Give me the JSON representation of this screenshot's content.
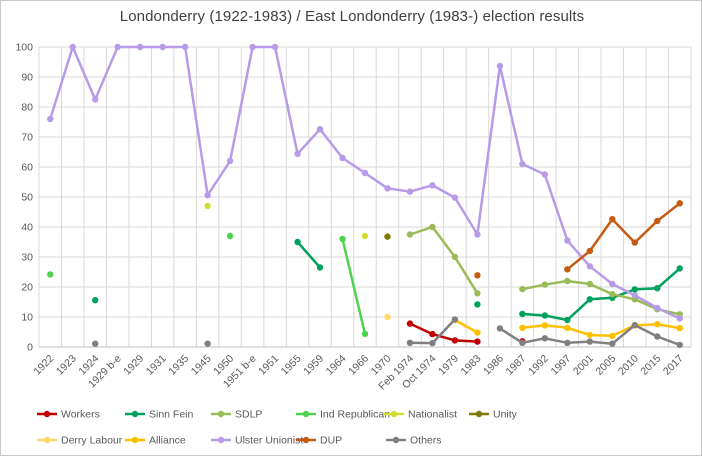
{
  "chart_data": {
    "type": "line",
    "title": "Londonderry (1922-1983) / East Londonderry (1983-) election results",
    "xlabel": "",
    "ylabel": "",
    "ylim": [
      0,
      100
    ],
    "ytick_step": 10,
    "grid": "both",
    "legend_position": "bottom",
    "y_tick_labels": [
      0,
      10,
      20,
      30,
      40,
      50,
      60,
      70,
      80,
      90,
      100
    ],
    "categories": [
      "1922",
      "1923",
      "1924",
      "1929 b-e",
      "1929",
      "1931",
      "1935",
      "1945",
      "1950",
      "1951 b-e",
      "1951",
      "1955",
      "1959",
      "1964",
      "1966",
      "1970",
      "Feb 1974",
      "Oct 1974",
      "1979",
      "1983",
      "1986",
      "1987",
      "1992",
      "1997",
      "2001",
      "2005",
      "2010",
      "2015",
      "2017"
    ],
    "series": [
      {
        "name": "Workers",
        "color": "#c00000",
        "values": [
          null,
          null,
          null,
          null,
          null,
          null,
          null,
          null,
          null,
          null,
          null,
          null,
          null,
          null,
          null,
          null,
          7.8,
          4.3,
          2.2,
          1.8,
          null,
          1.9,
          null,
          null,
          null,
          null,
          null,
          null,
          null
        ]
      },
      {
        "name": "Sinn Fein",
        "color": "#00a15c",
        "values": [
          null,
          null,
          15.6,
          null,
          null,
          null,
          null,
          null,
          null,
          null,
          null,
          35,
          26.5,
          null,
          null,
          null,
          null,
          null,
          null,
          14.2,
          null,
          11,
          10.5,
          9,
          15.9,
          16.4,
          19.2,
          19.6,
          26.2
        ]
      },
      {
        "name": "SDLP",
        "color": "#9bbb59",
        "values": [
          null,
          null,
          null,
          null,
          null,
          null,
          null,
          null,
          null,
          null,
          null,
          null,
          null,
          null,
          null,
          null,
          37.5,
          40,
          30,
          17.9,
          null,
          19.3,
          20.8,
          22,
          21,
          17.6,
          15.9,
          12.6,
          10.9
        ]
      },
      {
        "name": "Ind Republican",
        "color": "#4fd34f",
        "values": [
          24.2,
          null,
          null,
          null,
          null,
          null,
          null,
          null,
          37,
          null,
          null,
          null,
          null,
          36,
          4.4,
          null,
          null,
          null,
          null,
          null,
          null,
          null,
          null,
          null,
          null,
          null,
          null,
          null,
          null
        ]
      },
      {
        "name": "Nationalist",
        "color": "#d3dc32",
        "values": [
          null,
          null,
          null,
          null,
          null,
          null,
          null,
          47,
          null,
          null,
          null,
          null,
          null,
          null,
          37,
          null,
          null,
          null,
          null,
          null,
          null,
          null,
          null,
          null,
          null,
          null,
          null,
          null,
          null
        ]
      },
      {
        "name": "Unity",
        "color": "#7e7a00",
        "values": [
          null,
          null,
          null,
          null,
          null,
          null,
          null,
          null,
          null,
          null,
          null,
          null,
          null,
          null,
          null,
          36.8,
          null,
          null,
          null,
          null,
          null,
          null,
          null,
          null,
          null,
          null,
          null,
          null,
          null
        ]
      },
      {
        "name": "Derry Labour",
        "color": "#ffd966",
        "values": [
          null,
          null,
          null,
          null,
          null,
          null,
          null,
          null,
          null,
          null,
          null,
          null,
          null,
          null,
          null,
          10,
          null,
          null,
          null,
          null,
          null,
          null,
          null,
          null,
          null,
          null,
          null,
          null,
          null
        ]
      },
      {
        "name": "Alliance",
        "color": "#ffc000",
        "values": [
          null,
          null,
          null,
          null,
          null,
          null,
          null,
          null,
          null,
          null,
          null,
          null,
          null,
          null,
          null,
          null,
          null,
          null,
          9,
          4.8,
          null,
          6.4,
          7.2,
          6.4,
          4,
          3.7,
          7.2,
          7.6,
          6.3
        ]
      },
      {
        "name": "Ulster Unionist",
        "color": "#b89be8",
        "values": [
          76,
          100,
          82.5,
          100,
          100,
          100,
          100,
          50.6,
          62,
          100,
          100,
          64.4,
          72.6,
          63,
          58,
          52.9,
          51.8,
          53.9,
          49.8,
          37.5,
          93.7,
          61,
          57.5,
          35.5,
          26.9,
          21,
          17.2,
          13,
          9.5
        ]
      },
      {
        "name": "DUP",
        "color": "#c55a11",
        "values": [
          null,
          null,
          null,
          null,
          null,
          null,
          null,
          null,
          null,
          null,
          null,
          null,
          null,
          null,
          null,
          null,
          null,
          null,
          null,
          23.9,
          null,
          null,
          null,
          25.9,
          32,
          42.6,
          34.8,
          42,
          47.9
        ]
      },
      {
        "name": "Others",
        "color": "#808080",
        "values": [
          null,
          null,
          1.1,
          null,
          null,
          null,
          null,
          1.1,
          null,
          null,
          null,
          null,
          null,
          null,
          null,
          null,
          1.4,
          1.3,
          9.2,
          null,
          6.2,
          1.4,
          2.9,
          1.4,
          1.8,
          1.1,
          7.3,
          3.5,
          0.7
        ]
      }
    ]
  }
}
